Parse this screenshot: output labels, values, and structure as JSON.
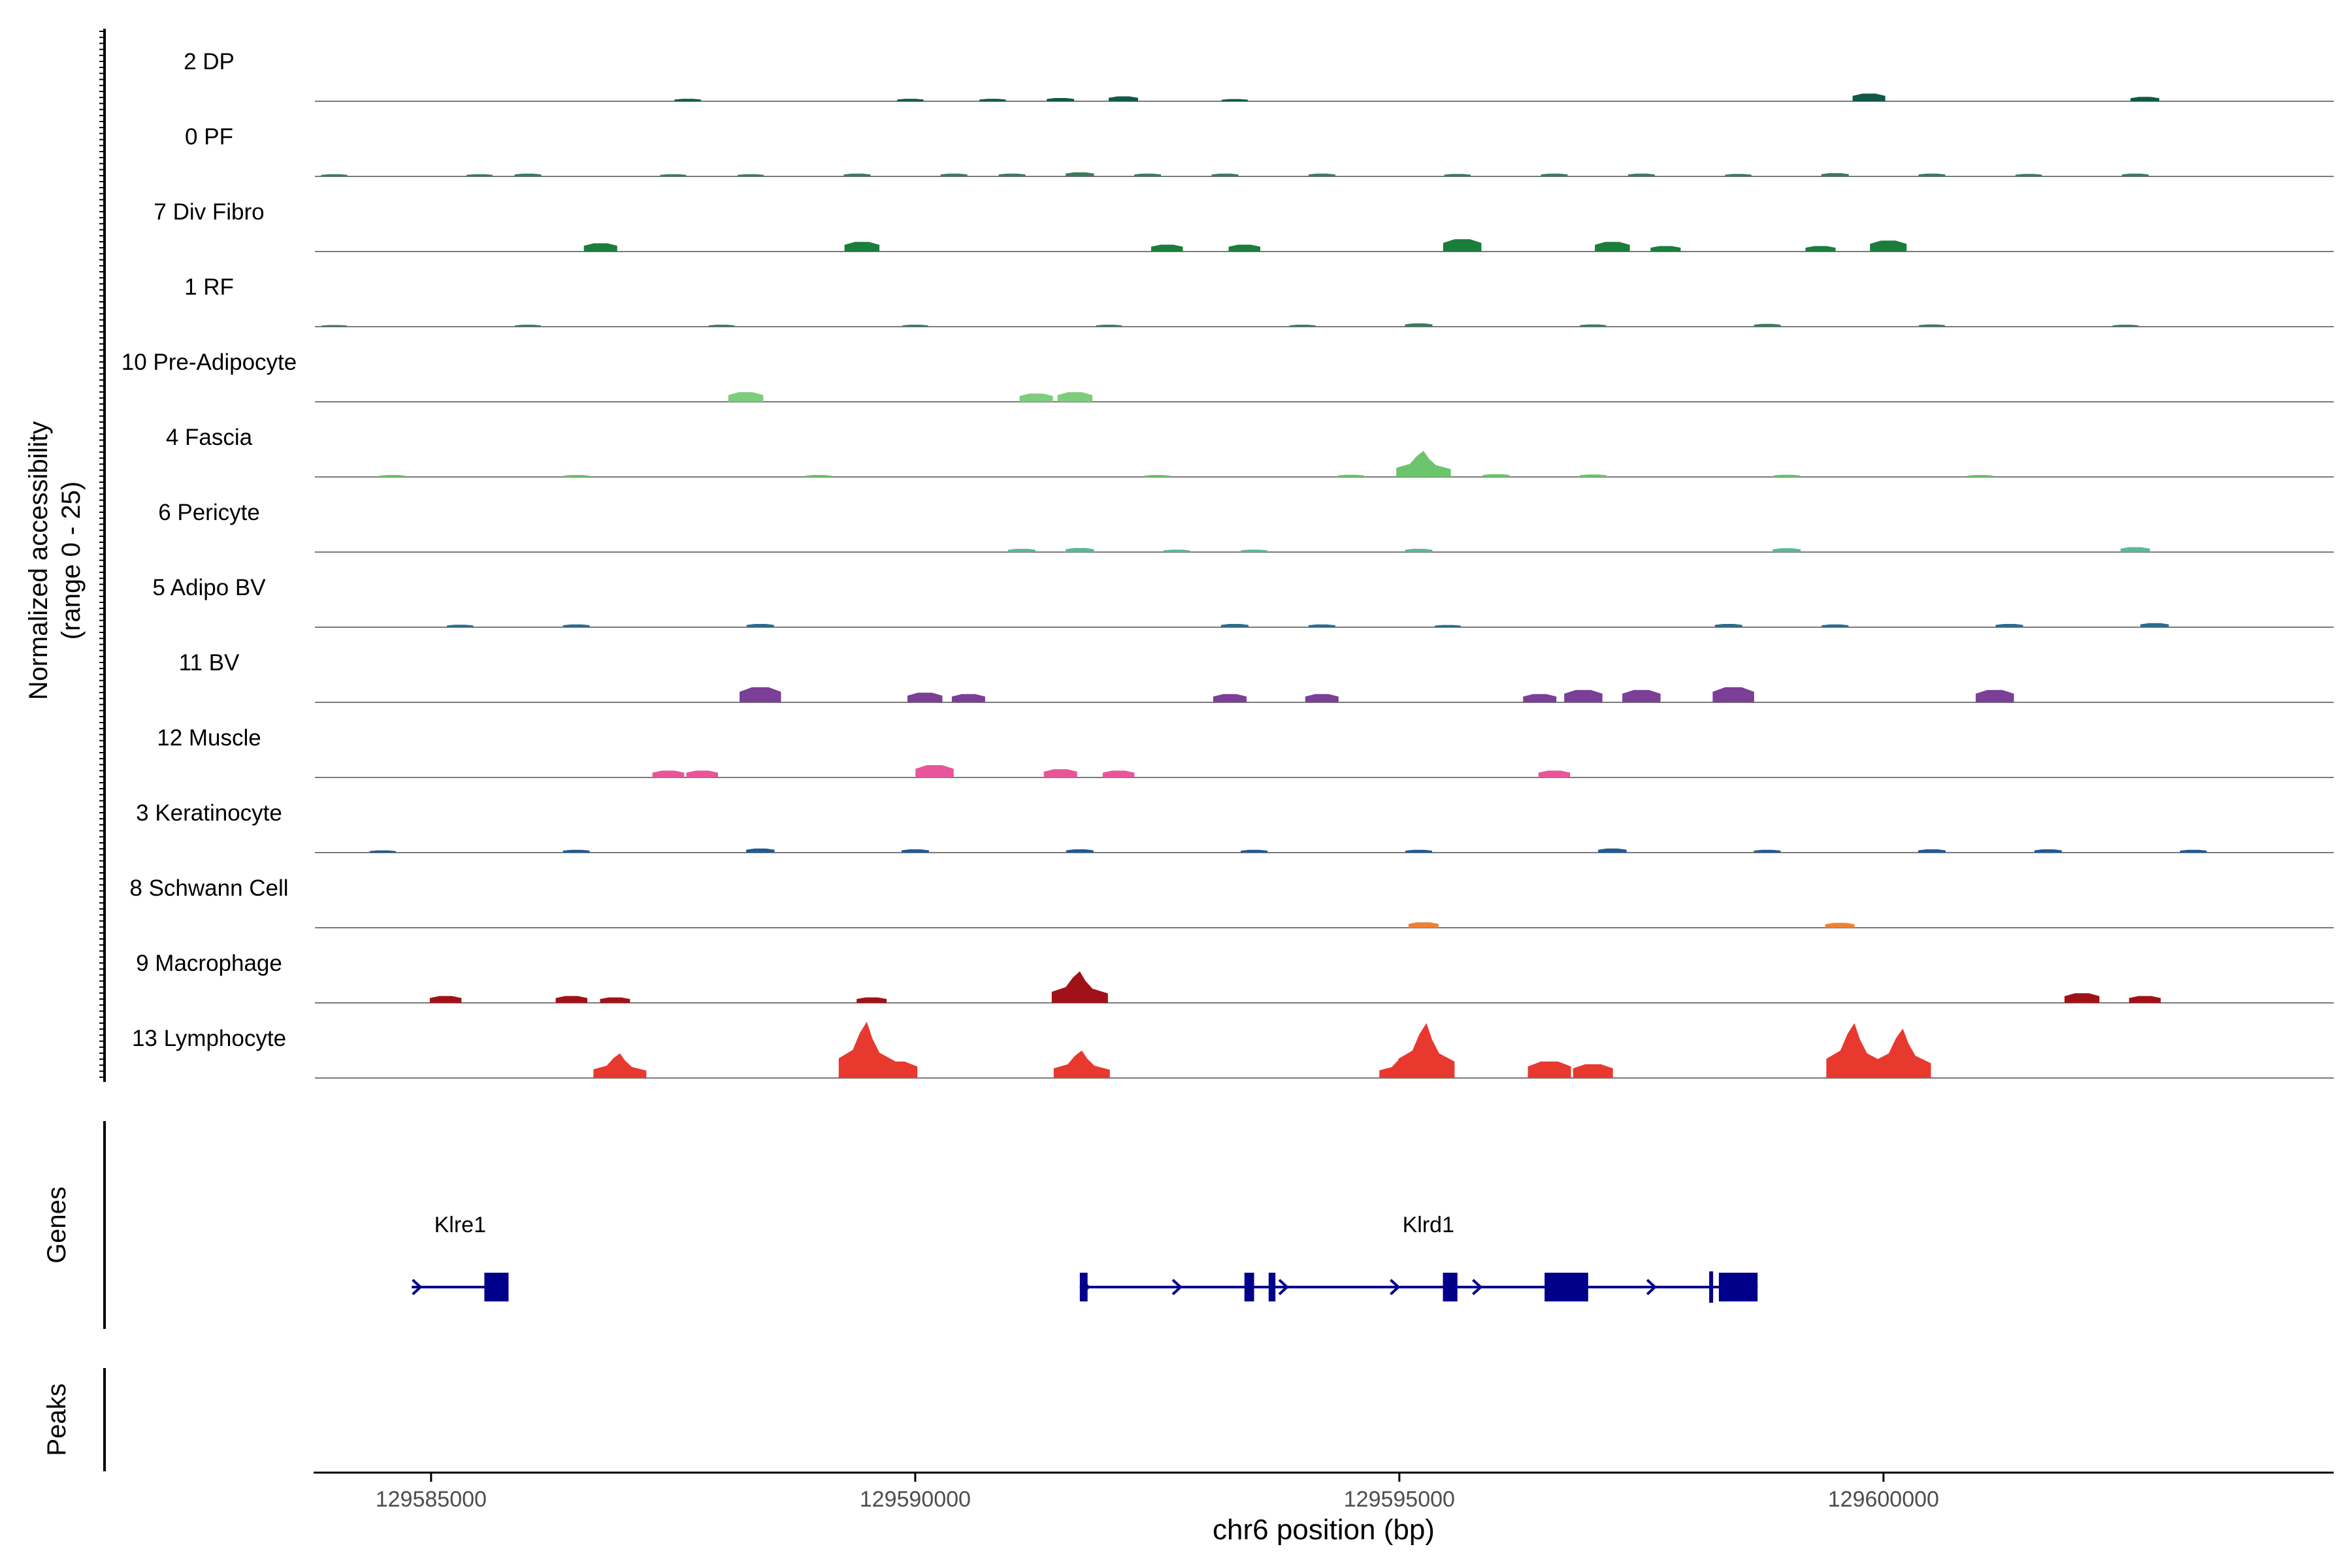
{
  "chart_data": {
    "type": "area",
    "title": "",
    "ylabel_line1": "Normalized accessibility",
    "ylabel_line2": "(range 0 - 25)",
    "xlabel": "chr6 position (bp)",
    "xlim": [
      129583800,
      129604650
    ],
    "ylim": [
      0,
      25
    ],
    "xticks": [
      {
        "value": 129585000,
        "label": "129585000"
      },
      {
        "value": 129590000,
        "label": "129590000"
      },
      {
        "value": 129595000,
        "label": "129595000"
      },
      {
        "value": 129600000,
        "label": "129600000"
      }
    ],
    "tracks": [
      {
        "name": "2 DP",
        "color": "#0f5a46",
        "peaks": [
          [
            129587650,
            0.9
          ],
          [
            129589950,
            0.9
          ],
          [
            129590800,
            0.9
          ],
          [
            129591500,
            1.2
          ],
          [
            129592150,
            1.8
          ],
          [
            129593300,
            0.8
          ],
          [
            129599850,
            2.8
          ],
          [
            129602700,
            1.6
          ]
        ]
      },
      {
        "name": "0 PF",
        "color": "#3d7a5e",
        "peaks": [
          [
            129584000,
            0.8
          ],
          [
            129585500,
            0.8
          ],
          [
            129586000,
            1.0
          ],
          [
            129587500,
            0.8
          ],
          [
            129588300,
            0.8
          ],
          [
            129589400,
            1.0
          ],
          [
            129590400,
            1.0
          ],
          [
            129591000,
            1.0
          ],
          [
            129591700,
            1.5
          ],
          [
            129592400,
            1.0
          ],
          [
            129593200,
            1.0
          ],
          [
            129594200,
            1.0
          ],
          [
            129595600,
            0.9
          ],
          [
            129596600,
            1.0
          ],
          [
            129597500,
            1.0
          ],
          [
            129598500,
            0.9
          ],
          [
            129599500,
            1.2
          ],
          [
            129600500,
            1.0
          ],
          [
            129601500,
            0.9
          ],
          [
            129602600,
            1.0
          ]
        ]
      },
      {
        "name": "7 Div Fibro",
        "color": "#1a7d3c",
        "peaks": [
          [
            129586750,
            3.0
          ],
          [
            129589450,
            3.5
          ],
          [
            129592600,
            2.5
          ],
          [
            129593400,
            2.5
          ],
          [
            129595650,
            4.5
          ],
          [
            129597200,
            3.5
          ],
          [
            129597750,
            2.0
          ],
          [
            129599350,
            2.0
          ],
          [
            129600050,
            4.0
          ]
        ]
      },
      {
        "name": "1 RF",
        "color": "#3d7a5e",
        "peaks": [
          [
            129584000,
            0.6
          ],
          [
            129586000,
            0.7
          ],
          [
            129588000,
            0.7
          ],
          [
            129590000,
            0.7
          ],
          [
            129592000,
            0.7
          ],
          [
            129594000,
            0.7
          ],
          [
            129595200,
            1.2
          ],
          [
            129597000,
            0.8
          ],
          [
            129598800,
            1.0
          ],
          [
            129600500,
            0.8
          ],
          [
            129602500,
            0.7
          ]
        ]
      },
      {
        "name": "10 Pre-Adipocyte",
        "color": "#7ccd7c",
        "peaks": [
          [
            129588250,
            3.5
          ],
          [
            129591250,
            3.0
          ],
          [
            129591650,
            3.5
          ]
        ]
      },
      {
        "name": "4 Fascia",
        "color": "#6cc46c",
        "peaks": [
          [
            129584600,
            0.7
          ],
          [
            129586500,
            0.7
          ],
          [
            129589000,
            0.7
          ],
          [
            129592500,
            0.7
          ],
          [
            129594500,
            0.8
          ],
          [
            129595250,
            9.5
          ],
          [
            129596000,
            1.0
          ],
          [
            129597000,
            0.9
          ],
          [
            129599000,
            0.8
          ],
          [
            129601000,
            0.7
          ]
        ]
      },
      {
        "name": "6 Pericyte",
        "color": "#5bb89b",
        "peaks": [
          [
            129591100,
            1.2
          ],
          [
            129591700,
            1.5
          ],
          [
            129592700,
            0.9
          ],
          [
            129593500,
            0.9
          ],
          [
            129595200,
            1.2
          ],
          [
            129599000,
            1.4
          ],
          [
            129602600,
            1.8
          ]
        ]
      },
      {
        "name": "5 Adipo BV",
        "color": "#2d6b8a",
        "peaks": [
          [
            129585300,
            0.9
          ],
          [
            129586500,
            1.0
          ],
          [
            129588400,
            1.2
          ],
          [
            129593300,
            1.2
          ],
          [
            129594200,
            1.0
          ],
          [
            129595500,
            0.8
          ],
          [
            129598400,
            1.2
          ],
          [
            129599500,
            1.0
          ],
          [
            129601300,
            1.2
          ],
          [
            129602800,
            1.5
          ]
        ]
      },
      {
        "name": "11 BV",
        "color": "#7b3f98",
        "peaks": [
          [
            129588400,
            5.5
          ],
          [
            129590100,
            3.5
          ],
          [
            129590550,
            3.0
          ],
          [
            129593250,
            3.0
          ],
          [
            129594200,
            3.0
          ],
          [
            129596450,
            3.0
          ],
          [
            129596900,
            4.5
          ],
          [
            129597500,
            4.5
          ],
          [
            129598450,
            5.5
          ],
          [
            129601150,
            4.5
          ]
        ]
      },
      {
        "name": "12 Muscle",
        "color": "#e8559a",
        "peaks": [
          [
            129587450,
            2.5
          ],
          [
            129587800,
            2.5
          ],
          [
            129590200,
            4.5
          ],
          [
            129591500,
            3.0
          ],
          [
            129592100,
            2.5
          ],
          [
            129596600,
            2.5
          ]
        ]
      },
      {
        "name": "3 Keratinocyte",
        "color": "#1f5a96",
        "peaks": [
          [
            129584500,
            0.8
          ],
          [
            129586500,
            1.0
          ],
          [
            129588400,
            1.5
          ],
          [
            129590000,
            1.2
          ],
          [
            129591700,
            1.2
          ],
          [
            129593500,
            1.0
          ],
          [
            129595200,
            1.0
          ],
          [
            129597200,
            1.5
          ],
          [
            129598800,
            1.0
          ],
          [
            129600500,
            1.2
          ],
          [
            129601700,
            1.2
          ],
          [
            129603200,
            1.0
          ]
        ]
      },
      {
        "name": "8 Schwann Cell",
        "color": "#f08030",
        "peaks": [
          [
            129595250,
            2.0
          ],
          [
            129599550,
            1.8
          ]
        ]
      },
      {
        "name": "9 Macrophage",
        "color": "#a01218",
        "peaks": [
          [
            129585150,
            2.5
          ],
          [
            129586450,
            2.5
          ],
          [
            129586900,
            2.0
          ],
          [
            129589550,
            2.0
          ],
          [
            129591700,
            11.5
          ],
          [
            129602050,
            3.5
          ],
          [
            129602700,
            2.5
          ]
        ]
      },
      {
        "name": "13 Lymphocyte",
        "color": "#e8392f",
        "peaks": [
          [
            129586950,
            9.0
          ],
          [
            129589500,
            20.5
          ],
          [
            129589800,
            6.0
          ],
          [
            129591720,
            10.0
          ],
          [
            129595050,
            8.0
          ],
          [
            129595280,
            20.0
          ],
          [
            129596550,
            6.0
          ],
          [
            129597000,
            5.0
          ],
          [
            129599700,
            20.0
          ],
          [
            129600200,
            18.0
          ]
        ]
      }
    ],
    "genes_label": "Genes",
    "peaks_label": "Peaks",
    "genes": [
      {
        "name": "Klre1",
        "start": 129584800,
        "end": 129585800,
        "label_pos": 129585300,
        "exons": [
          [
            129585550,
            129585800
          ]
        ],
        "arrows": [
          129584850
        ]
      },
      {
        "name": "Klrd1",
        "start": 129591700,
        "end": 129598700,
        "label_pos": 129595300,
        "exons": [
          [
            129591700,
            129591780
          ],
          [
            129593400,
            129593500
          ],
          [
            129593650,
            129593720
          ],
          [
            129595450,
            129595600
          ],
          [
            129596500,
            129596950
          ],
          [
            129598200,
            129598230
          ],
          [
            129598300,
            129598700
          ]
        ],
        "arrows": [
          129591750,
          129592700,
          129593800,
          129594950,
          129595800,
          129597600
        ]
      }
    ],
    "gene_color": "#00008b"
  }
}
